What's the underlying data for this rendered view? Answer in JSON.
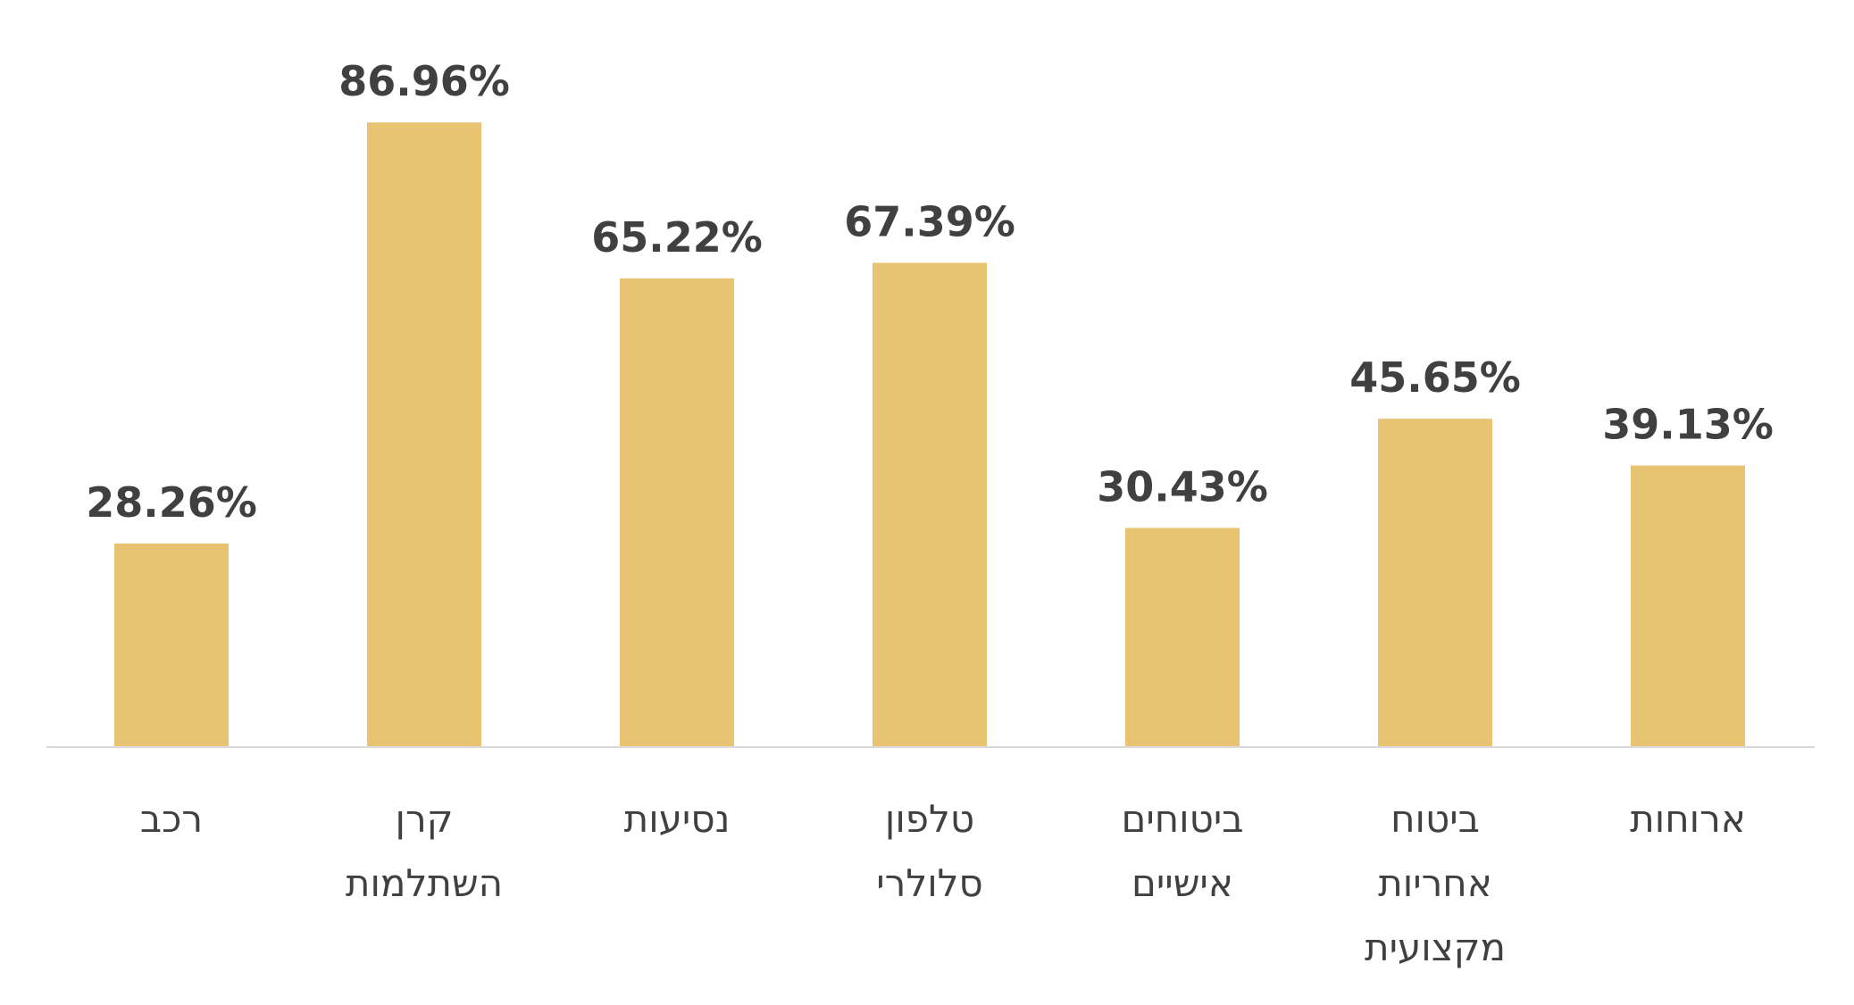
{
  "chart_data": {
    "type": "bar",
    "categories": [
      [
        "רכב"
      ],
      [
        "קרן",
        "השתלמות"
      ],
      [
        "נסיעות"
      ],
      [
        "טלפון",
        "סלולרי"
      ],
      [
        "ביטוחים",
        "אישיים"
      ],
      [
        "ביטוח",
        "אחריות",
        "מקצועית"
      ],
      [
        "ארוחות"
      ]
    ],
    "values": [
      28.26,
      86.96,
      65.22,
      67.39,
      30.43,
      45.65,
      39.13
    ],
    "value_labels": [
      "28.26%",
      "86.96%",
      "65.22%",
      "67.39%",
      "30.43%",
      "45.65%",
      "39.13%"
    ],
    "bar_color": "#E8C472",
    "axis_color": "#D9D9D9",
    "text_color": "#404040",
    "ylim": [
      0,
      100
    ],
    "grid": false,
    "legend": "none"
  }
}
